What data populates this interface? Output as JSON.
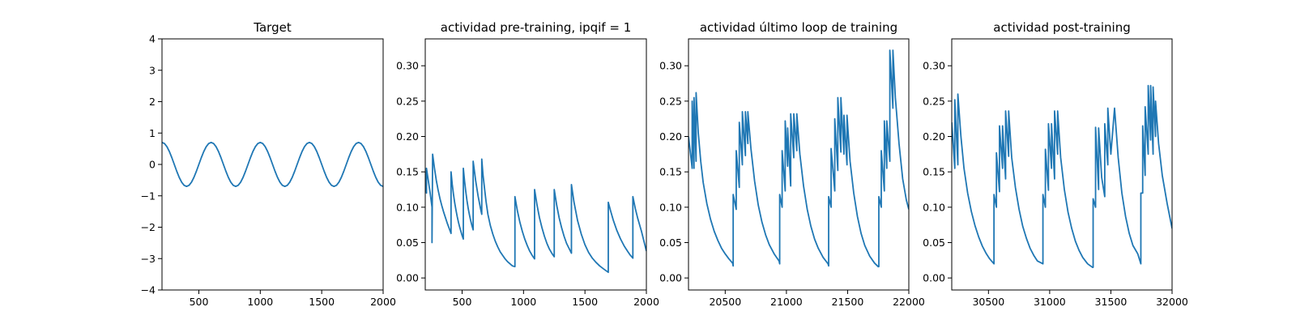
{
  "chart_data": [
    {
      "type": "line",
      "title": "Target",
      "xlim": [
        200,
        2000
      ],
      "ylim": [
        -4,
        4
      ],
      "xticks": [
        500,
        1000,
        1500,
        2000
      ],
      "yticks": [
        -4,
        -3,
        -2,
        -1,
        0,
        1,
        2,
        3,
        4
      ],
      "xtick_labels": [
        "500",
        "1000",
        "1500",
        "2000"
      ],
      "ytick_labels": [
        "−4",
        "−3",
        "−2",
        "−1",
        "0",
        "1",
        "2",
        "3",
        "4"
      ],
      "series": [
        {
          "color": "#1f77b4",
          "x": [
            200,
            220,
            240,
            260,
            280,
            300,
            320,
            340,
            360,
            380,
            400,
            420,
            440,
            460,
            480,
            500,
            520,
            540,
            560,
            580,
            600,
            620,
            640,
            660,
            680,
            700,
            720,
            740,
            760,
            780,
            800,
            820,
            840,
            860,
            880,
            900,
            920,
            940,
            960,
            980,
            1000,
            1020,
            1040,
            1060,
            1080,
            1100,
            1120,
            1140,
            1160,
            1180,
            1200,
            1220,
            1240,
            1260,
            1280,
            1300,
            1320,
            1340,
            1360,
            1380,
            1400,
            1420,
            1440,
            1460,
            1480,
            1500,
            1520,
            1540,
            1560,
            1580,
            1600,
            1620,
            1640,
            1660,
            1680,
            1700,
            1720,
            1740,
            1760,
            1780,
            1800,
            1820,
            1840,
            1860,
            1880,
            1900,
            1920,
            1940,
            1960,
            1980,
            2000
          ],
          "y": [
            0.7,
            0.666,
            0.566,
            0.411,
            0.216,
            0.0,
            -0.216,
            -0.411,
            -0.566,
            -0.666,
            -0.7,
            -0.666,
            -0.566,
            -0.411,
            -0.216,
            0.0,
            0.216,
            0.411,
            0.566,
            0.666,
            0.7,
            0.666,
            0.566,
            0.411,
            0.216,
            0.0,
            -0.216,
            -0.411,
            -0.566,
            -0.666,
            -0.7,
            -0.666,
            -0.566,
            -0.411,
            -0.216,
            0.0,
            0.216,
            0.411,
            0.566,
            0.666,
            0.7,
            0.666,
            0.566,
            0.411,
            0.216,
            0.0,
            -0.216,
            -0.411,
            -0.566,
            -0.666,
            -0.7,
            -0.666,
            -0.566,
            -0.411,
            -0.216,
            0.0,
            0.216,
            0.411,
            0.566,
            0.666,
            0.7,
            0.666,
            0.566,
            0.411,
            0.216,
            0.0,
            -0.216,
            -0.411,
            -0.566,
            -0.666,
            -0.7,
            -0.666,
            -0.566,
            -0.411,
            -0.216,
            0.0,
            0.216,
            0.411,
            0.566,
            0.666,
            0.7,
            0.666,
            0.566,
            0.411,
            0.216,
            0.0,
            -0.216,
            -0.411,
            -0.566,
            -0.666,
            -0.7
          ]
        }
      ]
    },
    {
      "type": "line",
      "title": "actividad pre-training, ipqif = 1",
      "xlim": [
        200,
        2000
      ],
      "ylim": [
        -0.017,
        0.338
      ],
      "xticks": [
        500,
        1000,
        1500,
        2000
      ],
      "yticks": [
        0.0,
        0.05,
        0.1,
        0.15,
        0.2,
        0.25,
        0.3
      ],
      "xtick_labels": [
        "500",
        "1000",
        "1500",
        "2000"
      ],
      "ytick_labels": [
        "0.00",
        "0.05",
        "0.10",
        "0.15",
        "0.20",
        "0.25",
        "0.30"
      ],
      "series": [
        {
          "color": "#1f77b4",
          "x": [
            200,
            210,
            210,
            240,
            255,
            255,
            260,
            275,
            290,
            305,
            320,
            335,
            350,
            365,
            380,
            395,
            410,
            410,
            420,
            430,
            440,
            450,
            460,
            470,
            480,
            490,
            500,
            510,
            510,
            520,
            530,
            540,
            550,
            560,
            570,
            580,
            590,
            590,
            610,
            630,
            650,
            660,
            660,
            670,
            685,
            695,
            695,
            710,
            730,
            750,
            770,
            790,
            810,
            830,
            850,
            870,
            890,
            910,
            930,
            930,
            950,
            970,
            990,
            1010,
            1030,
            1050,
            1070,
            1090,
            1090,
            1110,
            1130,
            1150,
            1170,
            1190,
            1210,
            1230,
            1250,
            1250,
            1270,
            1290,
            1310,
            1330,
            1350,
            1370,
            1390,
            1390,
            1410,
            1440,
            1470,
            1500,
            1530,
            1560,
            1590,
            1620,
            1650,
            1690,
            1690,
            1710,
            1730,
            1760,
            1790,
            1820,
            1850,
            1870,
            1890,
            1890,
            1910,
            1930,
            1960,
            2000
          ],
          "y": [
            0.15,
            0.12,
            0.155,
            0.12,
            0.1,
            0.05,
            0.175,
            0.155,
            0.138,
            0.124,
            0.112,
            0.102,
            0.093,
            0.085,
            0.077,
            0.07,
            0.063,
            0.15,
            0.132,
            0.118,
            0.106,
            0.096,
            0.087,
            0.079,
            0.072,
            0.066,
            0.06,
            0.055,
            0.155,
            0.137,
            0.122,
            0.109,
            0.098,
            0.089,
            0.081,
            0.074,
            0.068,
            0.165,
            0.138,
            0.116,
            0.098,
            0.09,
            0.168,
            0.146,
            0.123,
            0.108,
            0.108,
            0.09,
            0.074,
            0.062,
            0.052,
            0.044,
            0.037,
            0.032,
            0.027,
            0.023,
            0.02,
            0.017,
            0.016,
            0.115,
            0.095,
            0.079,
            0.066,
            0.055,
            0.046,
            0.038,
            0.032,
            0.027,
            0.125,
            0.103,
            0.085,
            0.071,
            0.059,
            0.049,
            0.041,
            0.035,
            0.03,
            0.125,
            0.103,
            0.085,
            0.071,
            0.059,
            0.049,
            0.042,
            0.035,
            0.132,
            0.108,
            0.081,
            0.062,
            0.047,
            0.036,
            0.028,
            0.022,
            0.017,
            0.013,
            0.008,
            0.107,
            0.094,
            0.082,
            0.067,
            0.055,
            0.045,
            0.037,
            0.032,
            0.028,
            0.115,
            0.098,
            0.084,
            0.066,
            0.038
          ]
        }
      ]
    },
    {
      "type": "line",
      "title": "actividad último loop de training",
      "xlim": [
        20200,
        22000
      ],
      "ylim": [
        -0.017,
        0.338
      ],
      "xticks": [
        20500,
        21000,
        21500,
        22000
      ],
      "yticks": [
        0.0,
        0.05,
        0.1,
        0.15,
        0.2,
        0.25,
        0.3
      ],
      "xtick_labels": [
        "20500",
        "21000",
        "21500",
        "22000"
      ],
      "ytick_labels": [
        "0.00",
        "0.05",
        "0.10",
        "0.15",
        "0.20",
        "0.25",
        "0.30"
      ],
      "series": [
        {
          "color": "#1f77b4",
          "x": [
            20200,
            20230,
            20230,
            20245,
            20245,
            20262,
            20262,
            20280,
            20280,
            20300,
            20320,
            20350,
            20380,
            20410,
            20440,
            20470,
            20500,
            20530,
            20560,
            20565,
            20565,
            20590,
            20590,
            20615,
            20615,
            20640,
            20640,
            20665,
            20665,
            20685,
            20685,
            20710,
            20740,
            20770,
            20800,
            20830,
            20860,
            20900,
            20940,
            20945,
            20945,
            20965,
            20965,
            20990,
            20990,
            21010,
            21010,
            21035,
            21035,
            21060,
            21060,
            21085,
            21085,
            21110,
            21140,
            21170,
            21200,
            21230,
            21260,
            21300,
            21340,
            21345,
            21345,
            21365,
            21365,
            21395,
            21395,
            21420,
            21420,
            21445,
            21445,
            21470,
            21470,
            21495,
            21495,
            21520,
            21550,
            21580,
            21610,
            21640,
            21680,
            21720,
            21750,
            21755,
            21755,
            21775,
            21775,
            21800,
            21800,
            21820,
            21820,
            21845,
            21845,
            21870,
            21870,
            21890,
            21890,
            21920,
            21950,
            21980,
            22000
          ],
          "y": [
            0.2,
            0.155,
            0.25,
            0.155,
            0.255,
            0.165,
            0.262,
            0.205,
            0.205,
            0.165,
            0.135,
            0.105,
            0.083,
            0.066,
            0.053,
            0.042,
            0.034,
            0.027,
            0.021,
            0.017,
            0.118,
            0.097,
            0.18,
            0.128,
            0.22,
            0.16,
            0.235,
            0.173,
            0.235,
            0.19,
            0.235,
            0.183,
            0.137,
            0.103,
            0.079,
            0.061,
            0.047,
            0.034,
            0.024,
            0.02,
            0.118,
            0.1,
            0.18,
            0.123,
            0.222,
            0.158,
            0.212,
            0.13,
            0.232,
            0.17,
            0.232,
            0.18,
            0.232,
            0.175,
            0.13,
            0.097,
            0.073,
            0.055,
            0.042,
            0.029,
            0.02,
            0.017,
            0.115,
            0.1,
            0.183,
            0.123,
            0.225,
            0.152,
            0.255,
            0.178,
            0.255,
            0.175,
            0.23,
            0.16,
            0.23,
            0.165,
            0.12,
            0.087,
            0.063,
            0.046,
            0.031,
            0.021,
            0.016,
            0.016,
            0.115,
            0.1,
            0.18,
            0.123,
            0.222,
            0.155,
            0.222,
            0.165,
            0.322,
            0.24,
            0.322,
            0.255,
            0.255,
            0.19,
            0.14,
            0.11,
            0.097
          ]
        }
      ]
    },
    {
      "type": "line",
      "title": "actividad post-training",
      "xlim": [
        30200,
        32000
      ],
      "ylim": [
        -0.017,
        0.338
      ],
      "xticks": [
        30500,
        31000,
        31500,
        32000
      ],
      "yticks": [
        0.0,
        0.05,
        0.1,
        0.15,
        0.2,
        0.25,
        0.3
      ],
      "xtick_labels": [
        "30500",
        "31000",
        "31500",
        "32000"
      ],
      "ytick_labels": [
        "0.00",
        "0.05",
        "0.10",
        "0.15",
        "0.20",
        "0.25",
        "0.30"
      ],
      "series": [
        {
          "color": "#1f77b4",
          "x": [
            30200,
            30225,
            30225,
            30250,
            30250,
            30275,
            30275,
            30300,
            30330,
            30360,
            30390,
            30420,
            30450,
            30480,
            30510,
            30545,
            30545,
            30565,
            30565,
            30590,
            30590,
            30615,
            30615,
            30640,
            30640,
            30665,
            30665,
            30690,
            30690,
            30720,
            30750,
            30780,
            30810,
            30840,
            30870,
            30900,
            30945,
            30945,
            30965,
            30965,
            30990,
            30990,
            31015,
            31015,
            31040,
            31040,
            31065,
            31065,
            31090,
            31120,
            31150,
            31180,
            31210,
            31240,
            31270,
            31310,
            31350,
            31355,
            31355,
            31375,
            31375,
            31400,
            31400,
            31425,
            31425,
            31450,
            31450,
            31475,
            31475,
            31500,
            31530,
            31560,
            31590,
            31620,
            31650,
            31680,
            31720,
            31745,
            31745,
            31760,
            31760,
            31780,
            31780,
            31805,
            31805,
            31825,
            31825,
            31845,
            31845,
            31865,
            31865,
            31890,
            31920,
            31960,
            32000
          ],
          "y": [
            0.22,
            0.155,
            0.252,
            0.16,
            0.26,
            0.2,
            0.2,
            0.155,
            0.12,
            0.094,
            0.074,
            0.058,
            0.045,
            0.035,
            0.027,
            0.02,
            0.118,
            0.1,
            0.177,
            0.122,
            0.215,
            0.155,
            0.215,
            0.14,
            0.236,
            0.172,
            0.236,
            0.17,
            0.17,
            0.128,
            0.097,
            0.073,
            0.056,
            0.042,
            0.032,
            0.024,
            0.02,
            0.118,
            0.1,
            0.182,
            0.124,
            0.218,
            0.155,
            0.218,
            0.14,
            0.236,
            0.175,
            0.236,
            0.17,
            0.125,
            0.093,
            0.07,
            0.052,
            0.039,
            0.029,
            0.02,
            0.015,
            0.015,
            0.112,
            0.1,
            0.213,
            0.125,
            0.212,
            0.142,
            0.142,
            0.115,
            0.218,
            0.16,
            0.24,
            0.175,
            0.24,
            0.17,
            0.12,
            0.087,
            0.063,
            0.046,
            0.034,
            0.02,
            0.12,
            0.12,
            0.215,
            0.145,
            0.242,
            0.175,
            0.272,
            0.195,
            0.272,
            0.175,
            0.27,
            0.2,
            0.25,
            0.19,
            0.145,
            0.105,
            0.07
          ]
        }
      ]
    }
  ]
}
